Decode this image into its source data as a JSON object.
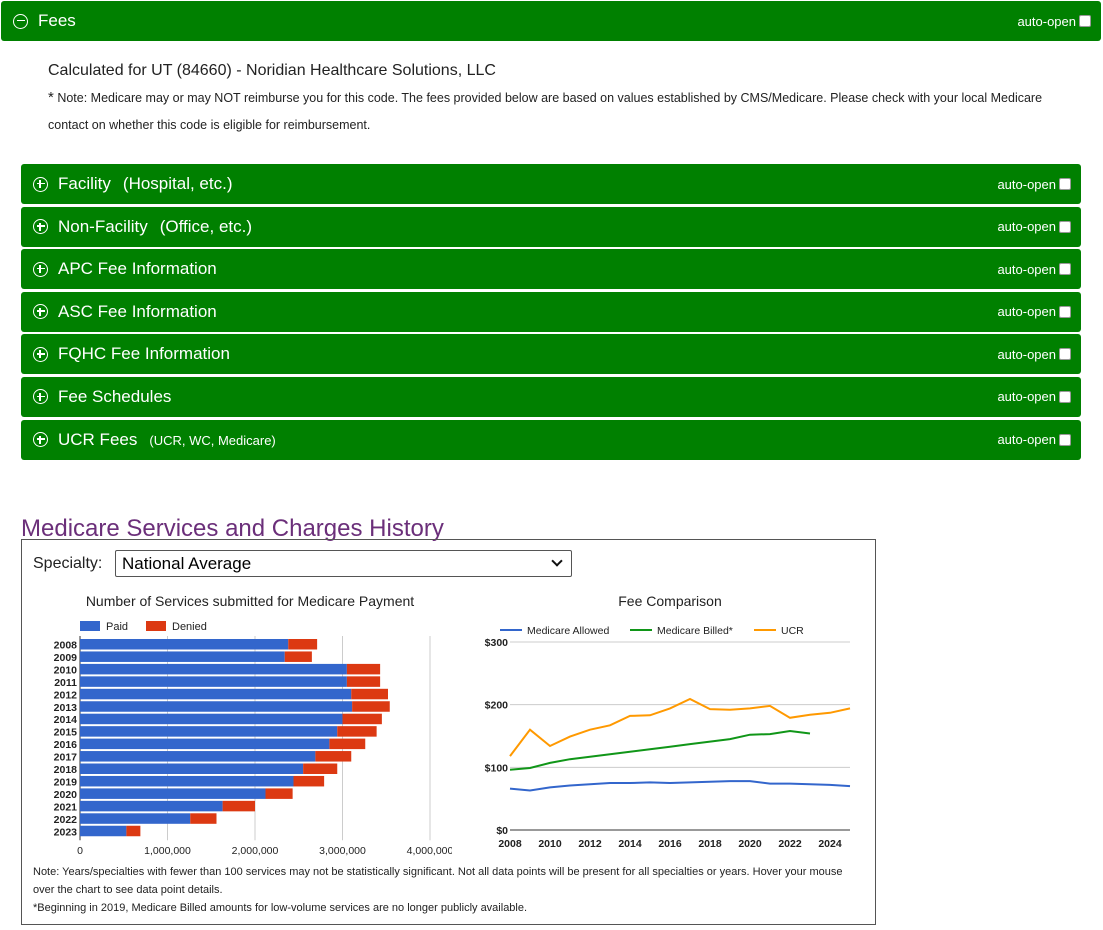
{
  "fees": {
    "title": "Fees",
    "auto_open": "auto-open",
    "calc_text": "Calculated for UT (84660) - Noridian Healthcare Solutions, LLC",
    "note_star": "*",
    "note_text": " Note: Medicare may or may NOT reimburse you for this code. The fees provided below are based on values established by CMS/Medicare. Please check with your local Medicare contact on whether this code is eligible for reimbursement."
  },
  "sections": [
    {
      "title": "Facility",
      "sub": "(Hospital, etc.)",
      "small": ""
    },
    {
      "title": "Non-Facility",
      "sub": "(Office, etc.)",
      "small": ""
    },
    {
      "title": "APC Fee Information",
      "sub": "",
      "small": ""
    },
    {
      "title": "ASC Fee Information",
      "sub": "",
      "small": ""
    },
    {
      "title": "FQHC Fee Information",
      "sub": "",
      "small": ""
    },
    {
      "title": "Fee Schedules",
      "sub": "",
      "small": ""
    },
    {
      "title": "UCR Fees",
      "sub": "",
      "small": "(UCR, WC, Medicare)"
    }
  ],
  "history": {
    "title": "Medicare Services and Charges History",
    "specialty_label": "Specialty:",
    "specialty_value": "National Average",
    "note_line1": "Note: Years/specialties with fewer than 100 services may not be statistically significant.  Not all data points will be present for all specialties or years. Hover your mouse over the chart to see data point details.",
    "note_line2": "*Beginning in 2019, Medicare Billed amounts for low-volume services are no longer publicly available."
  },
  "colors": {
    "green": "#008000",
    "paid": "#3366cc",
    "denied": "#dc3912",
    "allowed": "#3366cc",
    "billed": "#109618",
    "ucr": "#ff9900"
  },
  "chart_data": [
    {
      "type": "bar",
      "orientation": "horizontal",
      "stacked": true,
      "title": "Number of Services submitted for Medicare Payment",
      "legend": "top",
      "categories": [
        "2008",
        "2009",
        "2010",
        "2011",
        "2012",
        "2013",
        "2014",
        "2015",
        "2016",
        "2017",
        "2018",
        "2019",
        "2020",
        "2021",
        "2022",
        "2023"
      ],
      "series": [
        {
          "name": "Paid",
          "values": [
            2380000,
            2340000,
            3050000,
            3050000,
            3100000,
            3110000,
            3000000,
            2940000,
            2850000,
            2690000,
            2550000,
            2440000,
            2120000,
            1630000,
            1260000,
            530000
          ]
        },
        {
          "name": "Denied",
          "values": [
            330000,
            310000,
            380000,
            380000,
            420000,
            430000,
            450000,
            450000,
            410000,
            410000,
            390000,
            350000,
            310000,
            370000,
            300000,
            160000
          ]
        }
      ],
      "xticks": [
        "0",
        "1,000,000",
        "2,000,000",
        "3,000,000",
        "4,000,000"
      ],
      "xlim": [
        0,
        4000000
      ]
    },
    {
      "type": "line",
      "title": "Fee Comparison",
      "legend": "top",
      "x": [
        2008,
        2009,
        2010,
        2011,
        2012,
        2013,
        2014,
        2015,
        2016,
        2017,
        2018,
        2019,
        2020,
        2021,
        2022,
        2023,
        2024,
        2025
      ],
      "series": [
        {
          "name": "Medicare Allowed",
          "values": [
            66,
            63,
            68,
            71,
            73,
            75,
            75,
            76,
            75,
            76,
            77,
            78,
            78,
            74,
            74,
            73,
            72,
            70
          ]
        },
        {
          "name": "Medicare Billed*",
          "values": [
            96,
            99,
            107,
            113,
            117,
            121,
            125,
            129,
            133,
            137,
            141,
            145,
            152,
            153,
            158,
            154,
            null,
            null
          ]
        },
        {
          "name": "UCR",
          "values": [
            118,
            160,
            134,
            149,
            160,
            167,
            182,
            183,
            194,
            209,
            193,
            192,
            194,
            198,
            179,
            184,
            187,
            194
          ]
        }
      ],
      "xticks": [
        "2008",
        "2010",
        "2012",
        "2014",
        "2016",
        "2018",
        "2020",
        "2022",
        "2024"
      ],
      "yticks": [
        "$0",
        "$100",
        "$200",
        "$300"
      ],
      "ylim": [
        0,
        300
      ]
    }
  ]
}
